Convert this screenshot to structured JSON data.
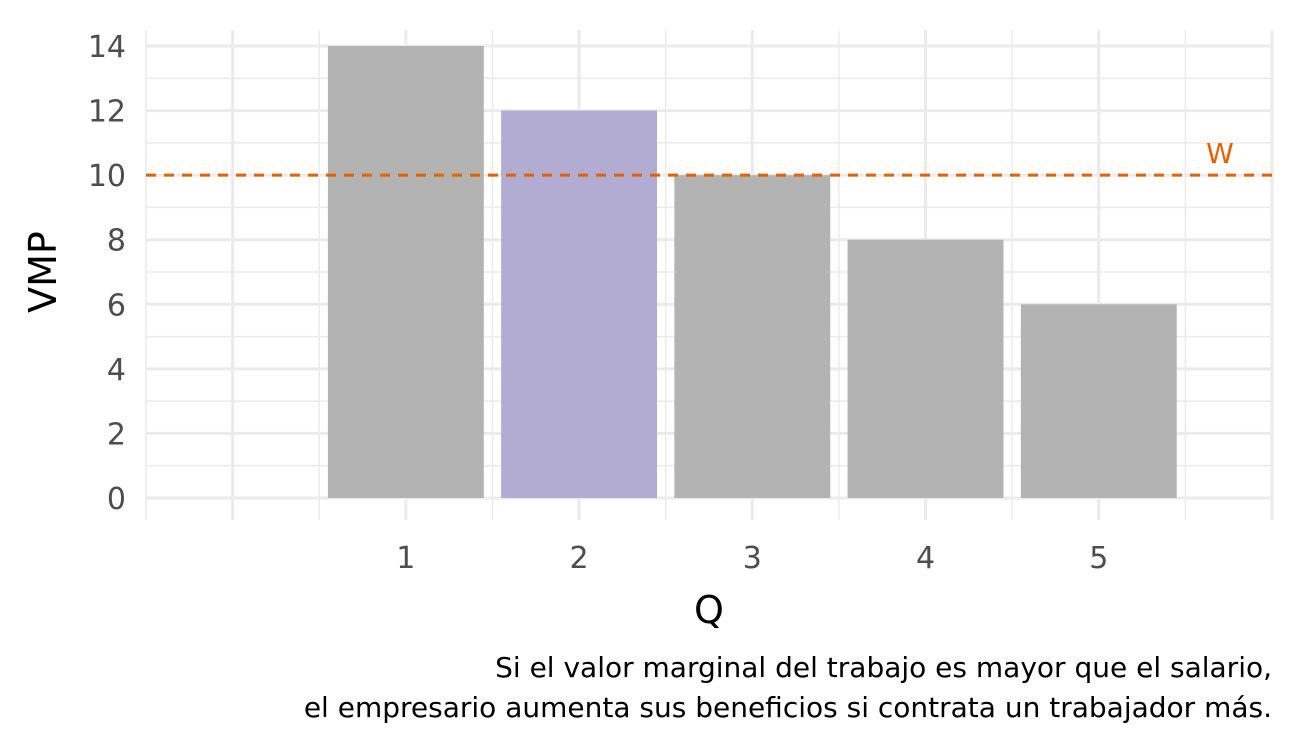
{
  "chart_data": {
    "type": "bar",
    "categories": [
      "1",
      "2",
      "3",
      "4",
      "5"
    ],
    "values": [
      14,
      12,
      10,
      8,
      6
    ],
    "highlight_index": 1,
    "xlabel": "Q",
    "ylabel": "VMP",
    "ylim": [
      0,
      14
    ],
    "yticks": [
      0,
      2,
      4,
      6,
      8,
      10,
      12,
      14
    ],
    "grid": true,
    "reference_line": {
      "label": "W",
      "value": 10,
      "color": "#e66101",
      "style": "dashed"
    },
    "colors": {
      "bar": "#b3b3b3",
      "highlight": "#b2abd2",
      "grid": "#ebebeb"
    }
  },
  "caption": {
    "line1": "Si el valor marginal del trabajo es mayor que el salario,",
    "line2": "el empresario aumenta sus beneficios si contrata un trabajador más."
  }
}
